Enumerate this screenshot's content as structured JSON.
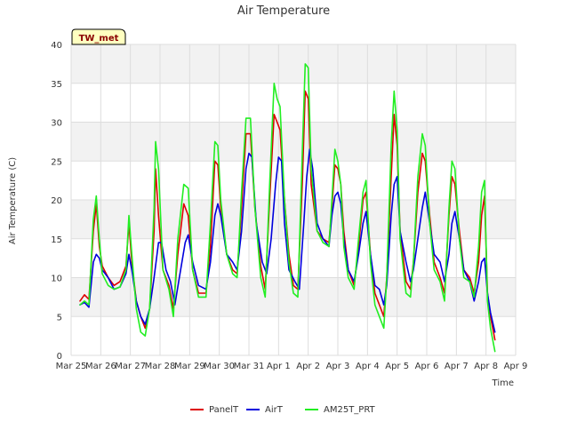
{
  "chart_data": {
    "type": "line",
    "title": "Air Temperature",
    "xlabel": "Time",
    "ylabel": "Air Temperature (C)",
    "badge": "TW_met",
    "ylim": [
      0,
      40
    ],
    "yticks": [
      0,
      5,
      10,
      15,
      20,
      25,
      30,
      35,
      40
    ],
    "xlim": [
      0,
      15
    ],
    "xtick_labels": [
      "Mar 25",
      "Mar 26",
      "Mar 27",
      "Mar 28",
      "Mar 29",
      "Mar 30",
      "Mar 31",
      "Apr 1",
      "Apr 2",
      "Apr 3",
      "Apr 4",
      "Apr 5",
      "Apr 6",
      "Apr 7",
      "Apr 8",
      "Apr 9"
    ],
    "x_units": "days since Mar 25",
    "grid": true,
    "legend_position": "bottom",
    "series": [
      {
        "name": "PanelT",
        "color": "#dd0000",
        "points": [
          [
            0.3,
            7.0
          ],
          [
            0.45,
            7.8
          ],
          [
            0.6,
            7.2
          ],
          [
            0.75,
            16.0
          ],
          [
            0.85,
            19.5
          ],
          [
            0.95,
            14.0
          ],
          [
            1.05,
            11.5
          ],
          [
            1.25,
            10.0
          ],
          [
            1.45,
            9.0
          ],
          [
            1.65,
            9.5
          ],
          [
            1.85,
            11.5
          ],
          [
            1.95,
            17.0
          ],
          [
            2.05,
            12.0
          ],
          [
            2.2,
            7.0
          ],
          [
            2.35,
            5.0
          ],
          [
            2.5,
            3.5
          ],
          [
            2.65,
            6.0
          ],
          [
            2.8,
            16.0
          ],
          [
            2.85,
            24.0
          ],
          [
            2.95,
            18.0
          ],
          [
            3.1,
            11.0
          ],
          [
            3.3,
            9.0
          ],
          [
            3.45,
            6.0
          ],
          [
            3.6,
            13.0
          ],
          [
            3.8,
            19.5
          ],
          [
            3.95,
            18.0
          ],
          [
            4.1,
            11.0
          ],
          [
            4.3,
            8.0
          ],
          [
            4.55,
            8.0
          ],
          [
            4.7,
            14.0
          ],
          [
            4.85,
            25.0
          ],
          [
            4.95,
            24.5
          ],
          [
            5.05,
            19.0
          ],
          [
            5.25,
            13.0
          ],
          [
            5.45,
            11.0
          ],
          [
            5.6,
            10.5
          ],
          [
            5.75,
            19.0
          ],
          [
            5.9,
            28.5
          ],
          [
            6.05,
            28.5
          ],
          [
            6.2,
            19.0
          ],
          [
            6.4,
            11.5
          ],
          [
            6.55,
            8.5
          ],
          [
            6.7,
            20.0
          ],
          [
            6.85,
            31.0
          ],
          [
            6.95,
            30.0
          ],
          [
            7.05,
            29.0
          ],
          [
            7.2,
            20.0
          ],
          [
            7.35,
            13.0
          ],
          [
            7.5,
            9.0
          ],
          [
            7.65,
            8.5
          ],
          [
            7.8,
            22.0
          ],
          [
            7.9,
            34.0
          ],
          [
            8.0,
            33.0
          ],
          [
            8.1,
            22.0
          ],
          [
            8.3,
            16.0
          ],
          [
            8.5,
            15.0
          ],
          [
            8.7,
            14.5
          ],
          [
            8.8,
            19.0
          ],
          [
            8.9,
            24.5
          ],
          [
            9.0,
            24.0
          ],
          [
            9.1,
            22.0
          ],
          [
            9.2,
            16.0
          ],
          [
            9.35,
            11.0
          ],
          [
            9.55,
            9.0
          ],
          [
            9.7,
            14.0
          ],
          [
            9.85,
            20.0
          ],
          [
            9.95,
            21.0
          ],
          [
            10.1,
            13.0
          ],
          [
            10.25,
            8.0
          ],
          [
            10.4,
            6.5
          ],
          [
            10.55,
            5.0
          ],
          [
            10.65,
            10.0
          ],
          [
            10.8,
            23.0
          ],
          [
            10.9,
            31.0
          ],
          [
            11.0,
            27.0
          ],
          [
            11.1,
            16.0
          ],
          [
            11.3,
            9.5
          ],
          [
            11.45,
            8.5
          ],
          [
            11.55,
            12.0
          ],
          [
            11.7,
            21.0
          ],
          [
            11.85,
            26.0
          ],
          [
            11.95,
            25.0
          ],
          [
            12.1,
            18.0
          ],
          [
            12.25,
            12.0
          ],
          [
            12.45,
            10.0
          ],
          [
            12.6,
            8.0
          ],
          [
            12.75,
            18.0
          ],
          [
            12.85,
            23.0
          ],
          [
            12.95,
            22.0
          ],
          [
            13.1,
            16.0
          ],
          [
            13.25,
            11.0
          ],
          [
            13.45,
            10.0
          ],
          [
            13.6,
            8.0
          ],
          [
            13.75,
            12.0
          ],
          [
            13.85,
            18.0
          ],
          [
            13.95,
            20.5
          ],
          [
            14.05,
            8.0
          ],
          [
            14.15,
            5.0
          ],
          [
            14.3,
            2.0
          ]
        ]
      },
      {
        "name": "AirT",
        "color": "#0000dd",
        "points": [
          [
            0.3,
            6.5
          ],
          [
            0.45,
            6.8
          ],
          [
            0.6,
            6.2
          ],
          [
            0.75,
            12.0
          ],
          [
            0.85,
            13.0
          ],
          [
            0.95,
            12.5
          ],
          [
            1.05,
            11.0
          ],
          [
            1.25,
            10.0
          ],
          [
            1.45,
            8.5
          ],
          [
            1.65,
            8.8
          ],
          [
            1.85,
            10.5
          ],
          [
            1.95,
            13.0
          ],
          [
            2.05,
            11.0
          ],
          [
            2.2,
            7.0
          ],
          [
            2.35,
            5.0
          ],
          [
            2.5,
            4.0
          ],
          [
            2.65,
            6.0
          ],
          [
            2.8,
            10.0
          ],
          [
            2.95,
            14.5
          ],
          [
            3.05,
            14.5
          ],
          [
            3.2,
            11.0
          ],
          [
            3.35,
            9.5
          ],
          [
            3.5,
            6.5
          ],
          [
            3.65,
            10.0
          ],
          [
            3.85,
            14.5
          ],
          [
            3.95,
            15.5
          ],
          [
            4.1,
            12.0
          ],
          [
            4.3,
            9.0
          ],
          [
            4.55,
            8.5
          ],
          [
            4.7,
            12.0
          ],
          [
            4.85,
            18.0
          ],
          [
            4.95,
            19.5
          ],
          [
            5.05,
            18.0
          ],
          [
            5.25,
            13.0
          ],
          [
            5.45,
            12.0
          ],
          [
            5.6,
            11.0
          ],
          [
            5.75,
            16.0
          ],
          [
            5.9,
            24.0
          ],
          [
            6.0,
            26.0
          ],
          [
            6.1,
            25.5
          ],
          [
            6.25,
            17.0
          ],
          [
            6.45,
            12.0
          ],
          [
            6.6,
            10.5
          ],
          [
            6.75,
            15.0
          ],
          [
            6.9,
            22.0
          ],
          [
            7.0,
            25.5
          ],
          [
            7.1,
            25.0
          ],
          [
            7.2,
            17.0
          ],
          [
            7.35,
            11.0
          ],
          [
            7.55,
            9.5
          ],
          [
            7.7,
            8.5
          ],
          [
            7.85,
            17.0
          ],
          [
            7.95,
            23.0
          ],
          [
            8.05,
            26.5
          ],
          [
            8.15,
            24.0
          ],
          [
            8.3,
            17.0
          ],
          [
            8.5,
            15.0
          ],
          [
            8.7,
            14.0
          ],
          [
            8.8,
            18.0
          ],
          [
            8.9,
            20.5
          ],
          [
            9.0,
            21.0
          ],
          [
            9.1,
            19.5
          ],
          [
            9.2,
            15.0
          ],
          [
            9.35,
            11.0
          ],
          [
            9.55,
            9.5
          ],
          [
            9.7,
            13.0
          ],
          [
            9.85,
            17.0
          ],
          [
            9.95,
            18.5
          ],
          [
            10.1,
            13.0
          ],
          [
            10.25,
            9.0
          ],
          [
            10.4,
            8.5
          ],
          [
            10.55,
            6.5
          ],
          [
            10.65,
            9.0
          ],
          [
            10.8,
            18.0
          ],
          [
            10.9,
            22.0
          ],
          [
            11.0,
            23.0
          ],
          [
            11.1,
            16.0
          ],
          [
            11.3,
            12.0
          ],
          [
            11.45,
            9.5
          ],
          [
            11.55,
            11.0
          ],
          [
            11.7,
            15.0
          ],
          [
            11.85,
            19.0
          ],
          [
            11.95,
            21.0
          ],
          [
            12.1,
            17.0
          ],
          [
            12.25,
            13.0
          ],
          [
            12.45,
            12.0
          ],
          [
            12.6,
            9.5
          ],
          [
            12.75,
            13.0
          ],
          [
            12.85,
            17.0
          ],
          [
            12.95,
            18.5
          ],
          [
            13.1,
            15.0
          ],
          [
            13.25,
            11.0
          ],
          [
            13.45,
            9.5
          ],
          [
            13.6,
            7.0
          ],
          [
            13.75,
            9.5
          ],
          [
            13.85,
            12.0
          ],
          [
            13.95,
            12.5
          ],
          [
            14.05,
            8.0
          ],
          [
            14.15,
            5.5
          ],
          [
            14.3,
            3.0
          ]
        ]
      },
      {
        "name": "AM25T_PRT",
        "color": "#22ee22",
        "points": [
          [
            0.3,
            6.5
          ],
          [
            0.45,
            7.0
          ],
          [
            0.6,
            6.5
          ],
          [
            0.75,
            17.5
          ],
          [
            0.85,
            20.5
          ],
          [
            0.95,
            15.0
          ],
          [
            1.05,
            10.5
          ],
          [
            1.25,
            9.0
          ],
          [
            1.45,
            8.5
          ],
          [
            1.65,
            8.8
          ],
          [
            1.85,
            11.0
          ],
          [
            1.95,
            18.0
          ],
          [
            2.05,
            13.0
          ],
          [
            2.2,
            6.0
          ],
          [
            2.35,
            3.0
          ],
          [
            2.5,
            2.5
          ],
          [
            2.65,
            6.0
          ],
          [
            2.8,
            19.0
          ],
          [
            2.85,
            27.5
          ],
          [
            2.95,
            24.0
          ],
          [
            3.1,
            11.0
          ],
          [
            3.3,
            8.5
          ],
          [
            3.45,
            5.0
          ],
          [
            3.6,
            15.0
          ],
          [
            3.8,
            22.0
          ],
          [
            3.95,
            21.5
          ],
          [
            4.1,
            11.0
          ],
          [
            4.3,
            7.5
          ],
          [
            4.55,
            7.5
          ],
          [
            4.7,
            17.0
          ],
          [
            4.85,
            27.5
          ],
          [
            4.95,
            27.0
          ],
          [
            5.05,
            20.0
          ],
          [
            5.25,
            13.0
          ],
          [
            5.45,
            10.5
          ],
          [
            5.6,
            10.0
          ],
          [
            5.75,
            21.0
          ],
          [
            5.9,
            30.5
          ],
          [
            6.05,
            30.5
          ],
          [
            6.2,
            19.0
          ],
          [
            6.4,
            10.0
          ],
          [
            6.55,
            7.5
          ],
          [
            6.7,
            22.0
          ],
          [
            6.85,
            35.0
          ],
          [
            6.95,
            33.0
          ],
          [
            7.05,
            32.0
          ],
          [
            7.2,
            20.0
          ],
          [
            7.35,
            12.0
          ],
          [
            7.5,
            8.0
          ],
          [
            7.65,
            7.5
          ],
          [
            7.8,
            26.0
          ],
          [
            7.9,
            37.5
          ],
          [
            8.0,
            37.0
          ],
          [
            8.1,
            24.0
          ],
          [
            8.3,
            16.0
          ],
          [
            8.5,
            14.5
          ],
          [
            8.7,
            14.0
          ],
          [
            8.8,
            20.0
          ],
          [
            8.9,
            26.5
          ],
          [
            9.0,
            25.0
          ],
          [
            9.1,
            22.0
          ],
          [
            9.2,
            14.0
          ],
          [
            9.35,
            10.0
          ],
          [
            9.55,
            8.5
          ],
          [
            9.7,
            15.0
          ],
          [
            9.85,
            21.0
          ],
          [
            9.95,
            22.5
          ],
          [
            10.1,
            12.0
          ],
          [
            10.25,
            6.5
          ],
          [
            10.4,
            5.0
          ],
          [
            10.55,
            3.5
          ],
          [
            10.65,
            10.0
          ],
          [
            10.8,
            27.0
          ],
          [
            10.9,
            34.0
          ],
          [
            11.0,
            29.0
          ],
          [
            11.1,
            15.0
          ],
          [
            11.3,
            8.0
          ],
          [
            11.45,
            7.5
          ],
          [
            11.55,
            12.0
          ],
          [
            11.7,
            23.0
          ],
          [
            11.85,
            28.5
          ],
          [
            11.95,
            27.0
          ],
          [
            12.1,
            17.0
          ],
          [
            12.25,
            11.0
          ],
          [
            12.45,
            9.5
          ],
          [
            12.6,
            7.0
          ],
          [
            12.75,
            19.0
          ],
          [
            12.85,
            25.0
          ],
          [
            12.95,
            24.0
          ],
          [
            13.1,
            15.0
          ],
          [
            13.25,
            10.0
          ],
          [
            13.45,
            9.5
          ],
          [
            13.6,
            7.5
          ],
          [
            13.75,
            14.0
          ],
          [
            13.85,
            21.0
          ],
          [
            13.95,
            22.5
          ],
          [
            14.05,
            7.0
          ],
          [
            14.15,
            3.5
          ],
          [
            14.3,
            0.5
          ]
        ]
      }
    ]
  }
}
